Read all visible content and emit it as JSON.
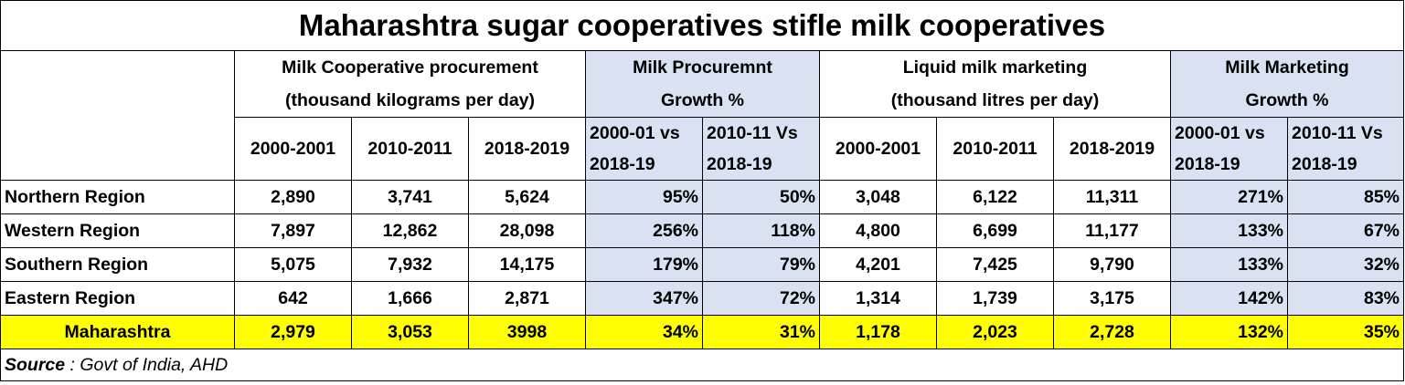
{
  "chart_data": {
    "type": "table",
    "title": "Maharashtra sugar cooperatives stifle milk cooperatives",
    "group_headers": [
      {
        "line1": "Milk Cooperative procurement",
        "line2": "(thousand kilograms per day)",
        "highlight": false
      },
      {
        "line1": "Milk Procuremnt",
        "line2": "Growth %",
        "highlight": true
      },
      {
        "line1": "Liquid milk marketing",
        "line2": "(thousand litres per day)",
        "highlight": false
      },
      {
        "line1": "Milk Marketing",
        "line2": "Growth %",
        "highlight": true
      }
    ],
    "column_headers": [
      {
        "line1": "2000-2001",
        "line2": ""
      },
      {
        "line1": "2010-2011",
        "line2": ""
      },
      {
        "line1": "2018-2019",
        "line2": ""
      },
      {
        "line1": "2000-01 vs",
        "line2": "2018-19"
      },
      {
        "line1": "2010-11 Vs",
        "line2": "2018-19"
      },
      {
        "line1": "2000-2001",
        "line2": ""
      },
      {
        "line1": "2010-2011",
        "line2": ""
      },
      {
        "line1": "2018-2019",
        "line2": ""
      },
      {
        "line1": "2000-01 vs",
        "line2": "2018-19"
      },
      {
        "line1": "2010-11 Vs",
        "line2": "2018-19"
      }
    ],
    "rows": [
      {
        "region": "Northern Region",
        "values": [
          "2,890",
          "3,741",
          "5,624",
          "95%",
          "50%",
          "3,048",
          "6,122",
          "11,311",
          "271%",
          "85%"
        ]
      },
      {
        "region": "Western Region",
        "values": [
          "7,897",
          "12,862",
          "28,098",
          "256%",
          "118%",
          "4,800",
          "6,699",
          "11,177",
          "133%",
          "67%"
        ]
      },
      {
        "region": "Southern Region",
        "values": [
          "5,075",
          "7,932",
          "14,175",
          "179%",
          "79%",
          "4,201",
          "7,425",
          "9,790",
          "133%",
          "32%"
        ]
      },
      {
        "region": "Eastern Region",
        "values": [
          "642",
          "1,666",
          "2,871",
          "347%",
          "72%",
          "1,314",
          "1,739",
          "3,175",
          "142%",
          "83%"
        ]
      }
    ],
    "total_row": {
      "region": "Maharashtra",
      "values": [
        "2,979",
        "3,053",
        "3998",
        "34%",
        "31%",
        "1,178",
        "2,023",
        "2,728",
        "132%",
        "35%"
      ]
    },
    "source": {
      "label": "Source",
      "text": " : Govt of India, AHD"
    }
  },
  "colors": {
    "growth_header_fill": "#d9e1f2",
    "total_row_fill": "#ffff00",
    "border": "#000000"
  }
}
